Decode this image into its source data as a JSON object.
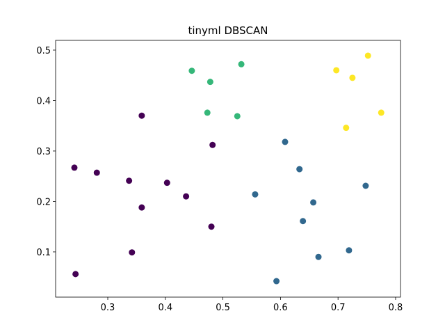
{
  "chart_data": {
    "type": "scatter",
    "title": "tinyml DBSCAN",
    "xlim": [
      0.2094,
      0.8085
    ],
    "xticks": [
      0.3,
      0.4,
      0.5,
      0.6,
      0.7,
      0.8
    ],
    "ylim": [
      0.0103,
      0.5193
    ],
    "yticks": [
      0.1,
      0.2,
      0.3,
      0.4,
      0.5
    ],
    "series": [
      {
        "color": "#440154",
        "x": [
          0.242,
          0.281,
          0.337,
          0.403,
          0.436,
          0.359,
          0.359,
          0.482,
          0.48,
          0.342,
          0.244
        ],
        "values": [
          0.267,
          0.257,
          0.241,
          0.237,
          0.21,
          0.188,
          0.37,
          0.312,
          0.15,
          0.099,
          0.056
        ]
      },
      {
        "color": "#31688e",
        "x": [
          0.608,
          0.633,
          0.556,
          0.657,
          0.639,
          0.748,
          0.719,
          0.666,
          0.593
        ],
        "values": [
          0.318,
          0.264,
          0.214,
          0.198,
          0.161,
          0.231,
          0.103,
          0.09,
          0.042
        ]
      },
      {
        "color": "#35b779",
        "x": [
          0.446,
          0.532,
          0.478,
          0.473,
          0.525
        ],
        "values": [
          0.459,
          0.472,
          0.437,
          0.376,
          0.369
        ]
      },
      {
        "color": "#fde725",
        "x": [
          0.752,
          0.697,
          0.725,
          0.775,
          0.714
        ],
        "values": [
          0.489,
          0.46,
          0.445,
          0.376,
          0.346
        ]
      }
    ]
  }
}
